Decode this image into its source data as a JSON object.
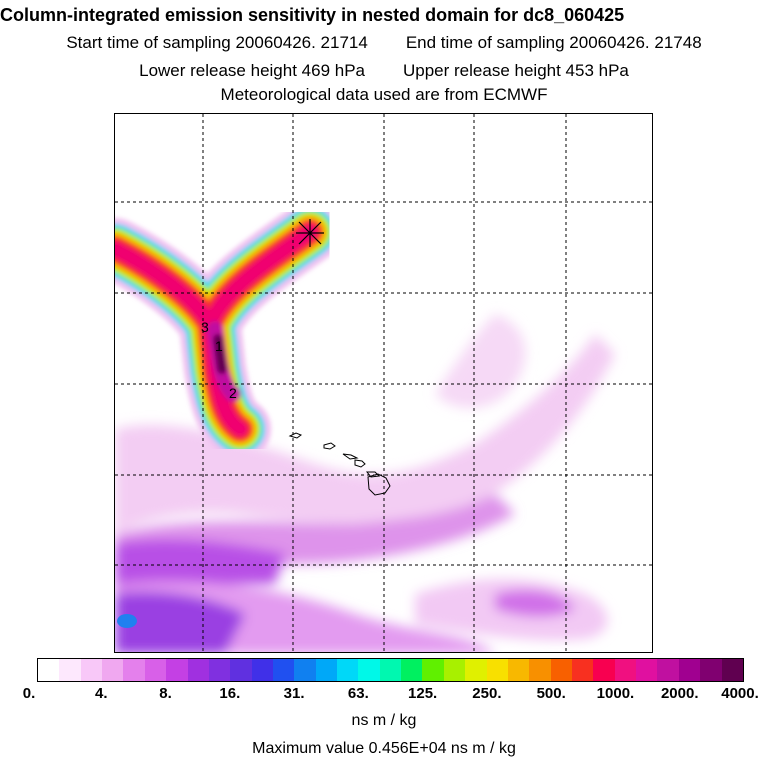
{
  "title": "Column-integrated emission sensitivity in nested domain for dc8_060425",
  "sampling": {
    "start": "Start time of sampling 20060426. 21714",
    "end": "End time of sampling 20060426. 21748"
  },
  "release": {
    "lower": "Lower release height  469 hPa",
    "upper": "Upper release height  453 hPa"
  },
  "met_note": "Meteorological data used are from ECMWF",
  "map": {
    "contour_labels": [
      "3",
      "1",
      "2"
    ]
  },
  "legend": {
    "ticks": [
      "0.",
      "4.",
      "8.",
      "16.",
      "31.",
      "63.",
      "125.",
      "250.",
      "500.",
      "1000.",
      "2000.",
      "4000."
    ],
    "colors": [
      "#ffffff",
      "#fde8fd",
      "#f8c8f8",
      "#f0a8f0",
      "#e480ec",
      "#d860e8",
      "#c440e4",
      "#a030e0",
      "#8030e0",
      "#6030e0",
      "#4030e8",
      "#2050f0",
      "#1080f0",
      "#00a8f8",
      "#00d8f8",
      "#00f8e8",
      "#00f8b0",
      "#00f060",
      "#60f000",
      "#a8f000",
      "#e0f000",
      "#f8e000",
      "#f8b800",
      "#f89000",
      "#f86000",
      "#f83020",
      "#f80050",
      "#f01080",
      "#e010a0",
      "#c010a0",
      "#a00090",
      "#800070",
      "#600050"
    ]
  },
  "units": "ns m / kg",
  "max_value": "Maximum value  0.456E+04 ns m / kg"
}
